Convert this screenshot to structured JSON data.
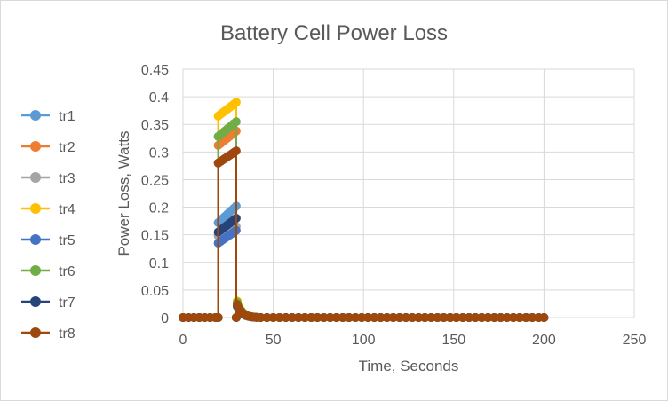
{
  "chart_data": {
    "type": "scatter",
    "title": "Battery Cell Power Loss",
    "xlabel": "Time, Seconds",
    "ylabel": "Power Loss, Watts",
    "xlim": [
      0,
      250
    ],
    "ylim": [
      0,
      0.45
    ],
    "x_ticks": [
      "0",
      "50",
      "100",
      "150",
      "200",
      "250"
    ],
    "y_ticks": [
      "0",
      "0.05",
      "0.1",
      "0.15",
      "0.2",
      "0.25",
      "0.3",
      "0.35",
      "0.4",
      "0.45"
    ],
    "grid": true,
    "legend_position": "left",
    "series": [
      {
        "name": "tr1",
        "color": "#5B9BD5",
        "peak": [
          0.172,
          0.202
        ],
        "tail": 0.028
      },
      {
        "name": "tr2",
        "color": "#ED7D31",
        "peak": [
          0.312,
          0.338
        ],
        "tail": 0.026
      },
      {
        "name": "tr3",
        "color": "#A5A5A5",
        "peak": [
          0.148,
          0.165
        ],
        "tail": 0.022
      },
      {
        "name": "tr4",
        "color": "#FFC000",
        "peak": [
          0.365,
          0.39
        ],
        "tail": 0.03
      },
      {
        "name": "tr5",
        "color": "#4472C4",
        "peak": [
          0.135,
          0.158
        ],
        "tail": 0.02
      },
      {
        "name": "tr6",
        "color": "#70AD47",
        "peak": [
          0.328,
          0.355
        ],
        "tail": 0.028
      },
      {
        "name": "tr7",
        "color": "#264478",
        "peak": [
          0.155,
          0.18
        ],
        "tail": 0.022
      },
      {
        "name": "tr8",
        "color": "#9E480E",
        "peak": [
          0.28,
          0.302
        ],
        "tail": 0.024
      }
    ]
  }
}
